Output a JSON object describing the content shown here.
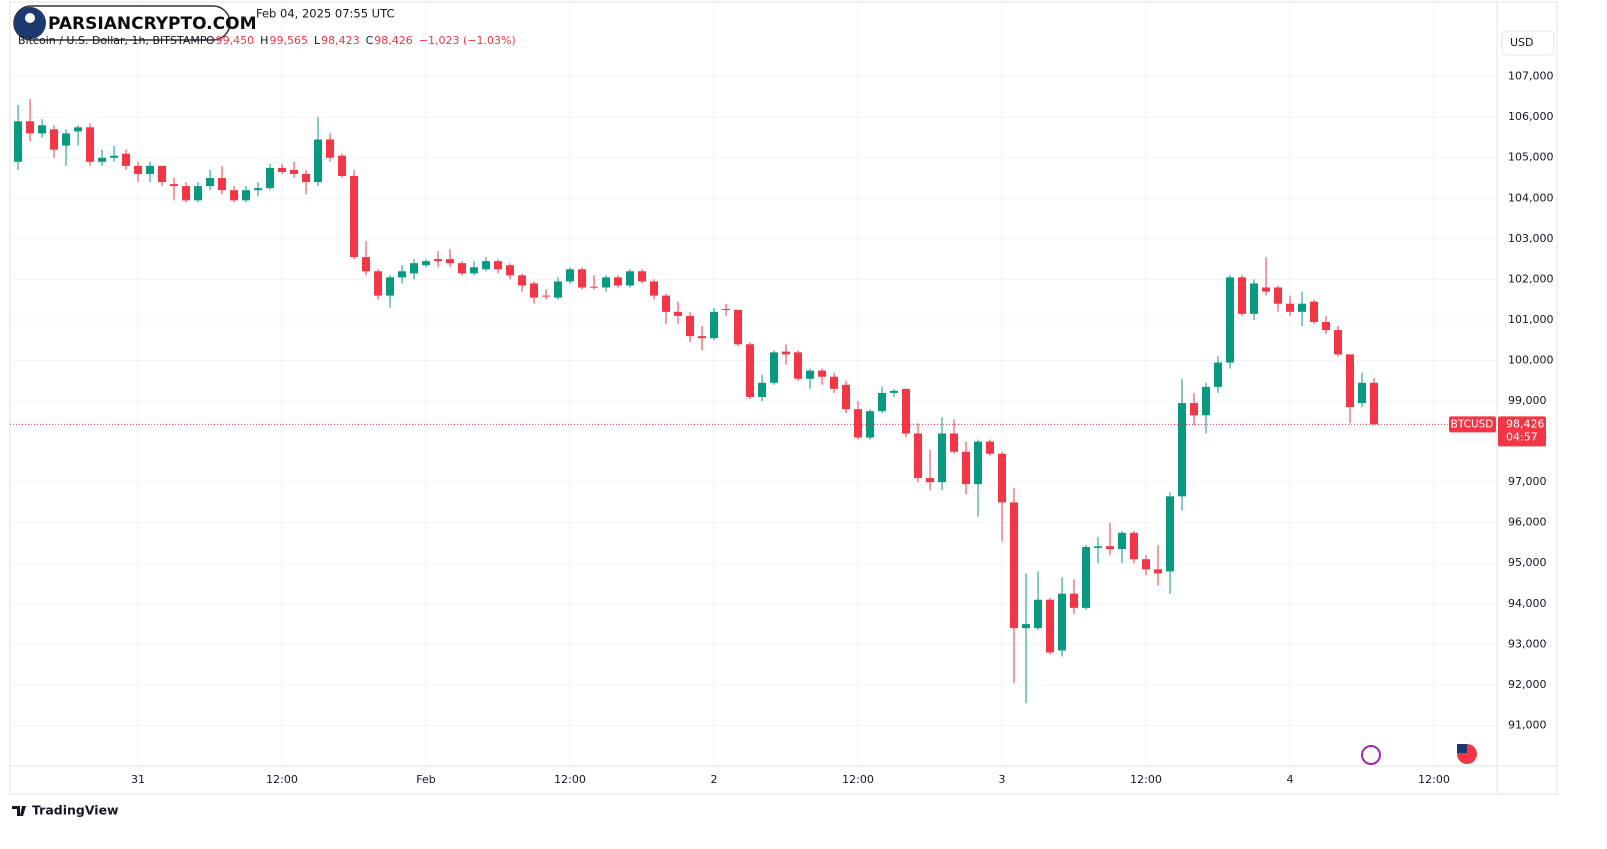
{
  "header": {
    "timestamp": "Feb 04, 2025 07:55 UTC",
    "watermark": "PARSIANCRYPTO.COM",
    "symbol": "Bitcoin / U.S. Dollar, 1h, BITSTAMP",
    "ohlc": [
      {
        "key": "O",
        "value": "99,450"
      },
      {
        "key": "H",
        "value": "99,565"
      },
      {
        "key": "L",
        "value": "98,423"
      },
      {
        "key": "C",
        "value": "98,426"
      }
    ],
    "change": "−1,023 (−1.03%)"
  },
  "footer": {
    "brand": "TradingView"
  },
  "chart_data": {
    "type": "candlestick",
    "currency": "USD",
    "up_color": "#089981",
    "down_color": "#f23645",
    "grid": true,
    "xlim": [
      -10.67,
      113.25
    ],
    "ylim": [
      90000,
      108150
    ],
    "xticks": [
      {
        "value": 0,
        "label": "31"
      },
      {
        "value": 12,
        "label": "12:00"
      },
      {
        "value": 24,
        "label": "Feb"
      },
      {
        "value": 36,
        "label": "12:00"
      },
      {
        "value": 48,
        "label": "2"
      },
      {
        "value": 60,
        "label": "12:00"
      },
      {
        "value": 72,
        "label": "3"
      },
      {
        "value": 84,
        "label": "12:00"
      },
      {
        "value": 96,
        "label": "4"
      },
      {
        "value": 108,
        "label": "12:00"
      }
    ],
    "yticks": [
      {
        "value": 91000,
        "label": "91,000"
      },
      {
        "value": 92000,
        "label": "92,000"
      },
      {
        "value": 93000,
        "label": "93,000"
      },
      {
        "value": 94000,
        "label": "94,000"
      },
      {
        "value": 95000,
        "label": "95,000"
      },
      {
        "value": 96000,
        "label": "96,000"
      },
      {
        "value": 97000,
        "label": "97,000"
      },
      {
        "value": 99000,
        "label": "99,000"
      },
      {
        "value": 100000,
        "label": "100,000"
      },
      {
        "value": 101000,
        "label": "101,000"
      },
      {
        "value": 102000,
        "label": "102,000"
      },
      {
        "value": 103000,
        "label": "103,000"
      },
      {
        "value": 104000,
        "label": "104,000"
      },
      {
        "value": 105000,
        "label": "105,000"
      },
      {
        "value": 106000,
        "label": "106,000"
      },
      {
        "value": 107000,
        "label": "107,000"
      }
    ],
    "last_price": {
      "value": 98426,
      "label": "98,426"
    },
    "last_symbol": "BTCUSD",
    "countdown": "04:57",
    "x": [
      -10,
      -9,
      -8,
      -7,
      -6,
      -5,
      -4,
      -3,
      -2,
      -1,
      0,
      1,
      2,
      3,
      4,
      5,
      6,
      7,
      8,
      9,
      10,
      11,
      12,
      13,
      14,
      15,
      16,
      17,
      18,
      19,
      20,
      21,
      22,
      23,
      24,
      25,
      26,
      27,
      28,
      29,
      30,
      31,
      32,
      33,
      34,
      35,
      36,
      37,
      38,
      39,
      40,
      41,
      42,
      43,
      44,
      45,
      46,
      47,
      48,
      49,
      50,
      51,
      52,
      53,
      54,
      55,
      56,
      57,
      58,
      59,
      60,
      61,
      62,
      63,
      64,
      65,
      66,
      67,
      68,
      69,
      70,
      71,
      72,
      73,
      74,
      75,
      76,
      77,
      78,
      79,
      80,
      81,
      82,
      83,
      84,
      85,
      86,
      87,
      88,
      89,
      90,
      91,
      92,
      93,
      94,
      95,
      96,
      97,
      98,
      99,
      100,
      101,
      102,
      103
    ],
    "open": [
      104900,
      105900,
      105600,
      105700,
      105300,
      105650,
      105750,
      104900,
      105000,
      105100,
      104800,
      104600,
      104800,
      104350,
      104300,
      103950,
      104300,
      104500,
      104200,
      103950,
      104200,
      104250,
      104750,
      104700,
      104600,
      104400,
      105450,
      105050,
      104550,
      102550,
      102200,
      101600,
      102050,
      102150,
      102350,
      102500,
      102500,
      102400,
      102150,
      102250,
      102450,
      102350,
      102100,
      101900,
      101600,
      101550,
      101950,
      102250,
      101820,
      101800,
      102050,
      101850,
      102200,
      101950,
      101600,
      101200,
      101100,
      100600,
      100550,
      101270,
      101250,
      100400,
      99100,
      99450,
      100220,
      100200,
      99550,
      99750,
      99600,
      99400,
      98800,
      98100,
      98750,
      99200,
      99300,
      98200,
      97100,
      97000,
      98200,
      97750,
      96950,
      98000,
      97700,
      96500,
      93400,
      93400,
      94100,
      92850,
      94250,
      93900,
      95380,
      95420,
      95350,
      95750,
      95100,
      94850,
      94800,
      96650,
      98950,
      98650,
      99350,
      99950,
      102050,
      101150,
      101800,
      101800,
      101400,
      101200,
      101450,
      100950,
      100750,
      100150,
      98950,
      99450
    ],
    "high": [
      106300,
      106450,
      105950,
      105800,
      105700,
      105800,
      105850,
      105200,
      105300,
      105200,
      104900,
      104900,
      104800,
      104500,
      104400,
      104400,
      104700,
      104800,
      104300,
      104300,
      104400,
      104850,
      104850,
      104900,
      104700,
      106000,
      105600,
      105100,
      104700,
      102950,
      102250,
      102100,
      102350,
      102500,
      102500,
      102700,
      102750,
      102450,
      102450,
      102550,
      102500,
      102400,
      102150,
      101950,
      101750,
      102050,
      102300,
      102300,
      102100,
      102100,
      102100,
      102250,
      102250,
      102000,
      101650,
      101450,
      101200,
      100850,
      101300,
      101400,
      101250,
      100450,
      99650,
      100250,
      100400,
      100250,
      99800,
      99800,
      99700,
      99500,
      99000,
      98800,
      99350,
      99300,
      99300,
      98450,
      97800,
      98600,
      98550,
      98000,
      98050,
      98050,
      97750,
      96850,
      94750,
      94800,
      94150,
      94650,
      94600,
      95450,
      95650,
      96000,
      95800,
      95800,
      95200,
      95450,
      96750,
      99550,
      99200,
      99450,
      100100,
      102100,
      102100,
      102000,
      102550,
      101850,
      101600,
      101700,
      101500,
      101100,
      100850,
      100150,
      99700,
      99565
    ],
    "low": [
      104700,
      105400,
      105500,
      105000,
      104800,
      105300,
      104800,
      104800,
      104900,
      104700,
      104400,
      104400,
      104300,
      103950,
      103900,
      103900,
      104200,
      104100,
      103900,
      103900,
      104050,
      104200,
      104600,
      104500,
      104100,
      104300,
      104900,
      104500,
      102500,
      102100,
      101500,
      101300,
      101900,
      102000,
      102300,
      102300,
      102300,
      102100,
      102100,
      102200,
      102150,
      102000,
      101700,
      101400,
      101500,
      101500,
      101900,
      101750,
      101750,
      101700,
      101800,
      101800,
      101900,
      101500,
      100900,
      100900,
      100450,
      100250,
      100500,
      101100,
      100350,
      99050,
      99000,
      99400,
      99900,
      99500,
      99300,
      99400,
      99200,
      98700,
      98050,
      98050,
      98700,
      99100,
      98100,
      97000,
      96800,
      96800,
      97700,
      96700,
      96150,
      97650,
      95550,
      92050,
      91550,
      93350,
      92750,
      92700,
      93750,
      93850,
      95000,
      95200,
      95000,
      95000,
      94700,
      94450,
      94250,
      96300,
      98400,
      98200,
      99200,
      99800,
      101100,
      101000,
      101600,
      101200,
      101100,
      100850,
      100900,
      100650,
      100100,
      98450,
      98850,
      98423
    ],
    "close": [
      105900,
      105600,
      105800,
      105200,
      105600,
      105750,
      104900,
      105000,
      105050,
      104800,
      104600,
      104800,
      104400,
      104300,
      103950,
      104300,
      104500,
      104200,
      103950,
      104200,
      104250,
      104750,
      104650,
      104600,
      104400,
      105450,
      105000,
      104550,
      102550,
      102200,
      101600,
      102050,
      102200,
      102400,
      102450,
      102450,
      102400,
      102150,
      102300,
      102450,
      102250,
      102100,
      101850,
      101550,
      101580,
      101950,
      102250,
      101800,
      101800,
      102050,
      101850,
      102200,
      101950,
      101600,
      101200,
      101100,
      100600,
      100550,
      101200,
      101250,
      100400,
      99100,
      99450,
      100200,
      100150,
      99550,
      99750,
      99600,
      99300,
      98800,
      98100,
      98750,
      99200,
      99250,
      98200,
      97100,
      97000,
      98200,
      97750,
      96950,
      98000,
      97700,
      96500,
      93400,
      93500,
      94100,
      92800,
      94250,
      93900,
      95400,
      95420,
      95350,
      95750,
      95100,
      94850,
      94750,
      96650,
      98950,
      98650,
      99350,
      99950,
      102050,
      101150,
      101900,
      101700,
      101400,
      101200,
      101400,
      100950,
      100750,
      100150,
      98850,
      99450,
      98426
    ]
  }
}
